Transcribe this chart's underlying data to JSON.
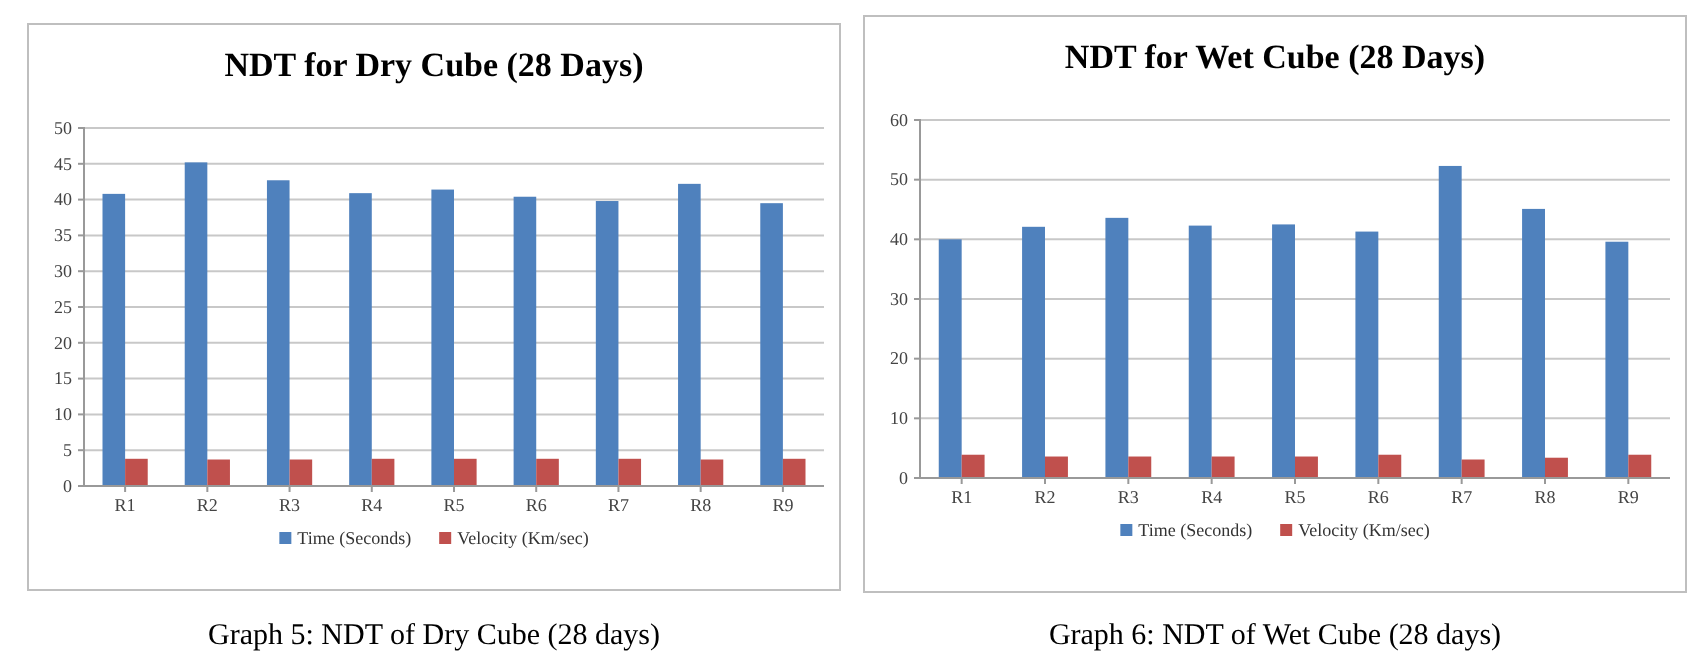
{
  "chart_data": [
    {
      "type": "bar",
      "title": "NDT for Dry Cube (28 Days)",
      "categories": [
        "R1",
        "R2",
        "R3",
        "R4",
        "R5",
        "R6",
        "R7",
        "R8",
        "R9"
      ],
      "series": [
        {
          "name": "Time (Seconds)",
          "color": "#4f81bd",
          "values": [
            40.8,
            45.2,
            42.7,
            40.9,
            41.4,
            40.4,
            39.8,
            42.2,
            39.5
          ]
        },
        {
          "name": "Velocity (Km/sec)",
          "color": "#c0504d",
          "values": [
            3.8,
            3.7,
            3.7,
            3.8,
            3.8,
            3.8,
            3.8,
            3.7,
            3.8
          ]
        }
      ],
      "ylim": [
        0,
        50
      ],
      "yticks": [
        0,
        5,
        10,
        15,
        20,
        25,
        30,
        35,
        40,
        45,
        50
      ],
      "grid": "y",
      "legend": "bottom",
      "annotations": [
        "Graph 5: NDT of Dry Cube (28 days)"
      ]
    },
    {
      "type": "bar",
      "title": "NDT for Wet Cube (28 Days)",
      "categories": [
        "R1",
        "R2",
        "R3",
        "R4",
        "R5",
        "R6",
        "R7",
        "R8",
        "R9"
      ],
      "series": [
        {
          "name": "Time (Seconds)",
          "color": "#4f81bd",
          "values": [
            40.0,
            42.1,
            43.6,
            42.3,
            42.5,
            41.3,
            52.3,
            45.1,
            39.6
          ]
        },
        {
          "name": "Velocity (Km/sec)",
          "color": "#c0504d",
          "values": [
            3.9,
            3.6,
            3.6,
            3.6,
            3.6,
            3.9,
            3.1,
            3.4,
            3.9
          ]
        }
      ],
      "ylim": [
        0,
        60
      ],
      "yticks": [
        0,
        10,
        20,
        30,
        40,
        50,
        60
      ],
      "grid": "y",
      "legend": "bottom",
      "annotations": [
        "Graph 6: NDT of Wet Cube (28 days)"
      ]
    }
  ]
}
